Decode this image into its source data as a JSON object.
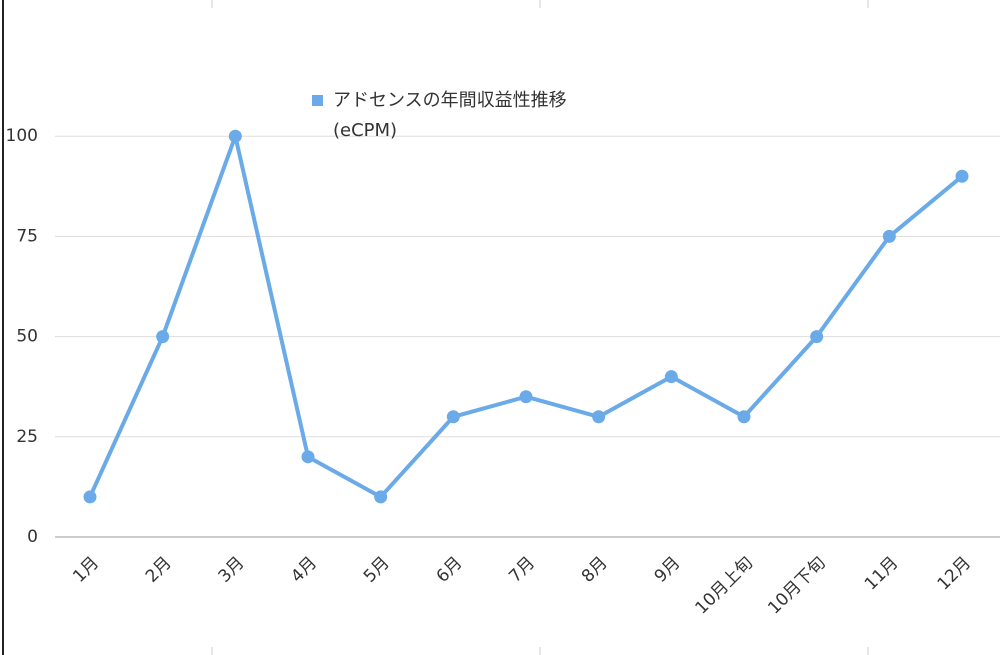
{
  "chart_data": {
    "type": "line",
    "categories": [
      "1月",
      "2月",
      "3月",
      "4月",
      "5月",
      "6月",
      "7月",
      "8月",
      "9月",
      "10月上旬",
      "10月下旬",
      "11月",
      "12月"
    ],
    "series": [
      {
        "name": "アドセンスの年間収益性推移(eCPM)",
        "color": "#6aaae8",
        "values": [
          10,
          50,
          100,
          20,
          10,
          30,
          35,
          30,
          40,
          30,
          50,
          75,
          90
        ]
      }
    ],
    "ylim": [
      0,
      125
    ],
    "yticks": [
      0,
      25,
      50,
      75,
      100
    ],
    "grid": true
  }
}
